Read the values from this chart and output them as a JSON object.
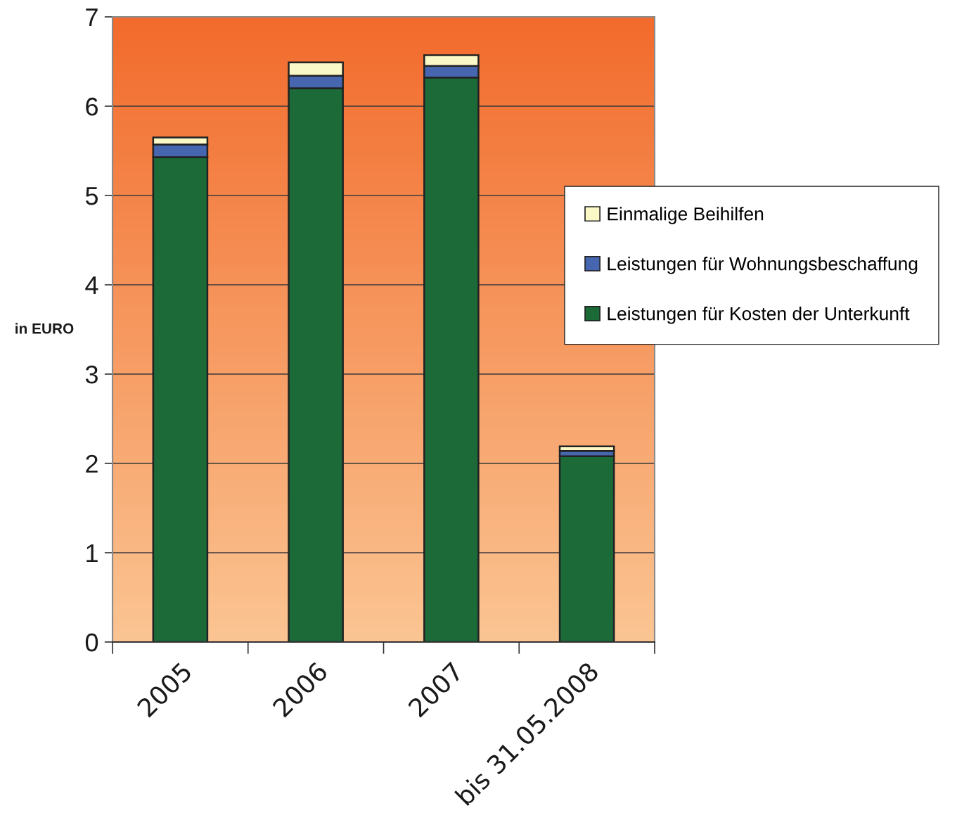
{
  "chart_data": {
    "type": "bar",
    "stacked": true,
    "ylabel": "in EURO",
    "categories": [
      "2005",
      "2006",
      "2007",
      "bis 31.05.2008"
    ],
    "series": [
      {
        "name": "Leistungen für Kosten der Unterkunft",
        "color": "#1b6a38",
        "values": [
          5.43,
          6.2,
          6.32,
          2.08
        ]
      },
      {
        "name": "Leistungen für Wohnungsbeschaffung",
        "color": "#4667b0",
        "values": [
          0.14,
          0.14,
          0.13,
          0.06
        ]
      },
      {
        "name": "Einmalige Beihilfen",
        "color": "#fbf8c8",
        "values": [
          0.08,
          0.15,
          0.12,
          0.05
        ]
      }
    ],
    "ylim": [
      0,
      7
    ],
    "yticks": [
      0,
      1,
      2,
      3,
      4,
      5,
      6,
      7
    ],
    "grid": "y",
    "legend": "right"
  }
}
